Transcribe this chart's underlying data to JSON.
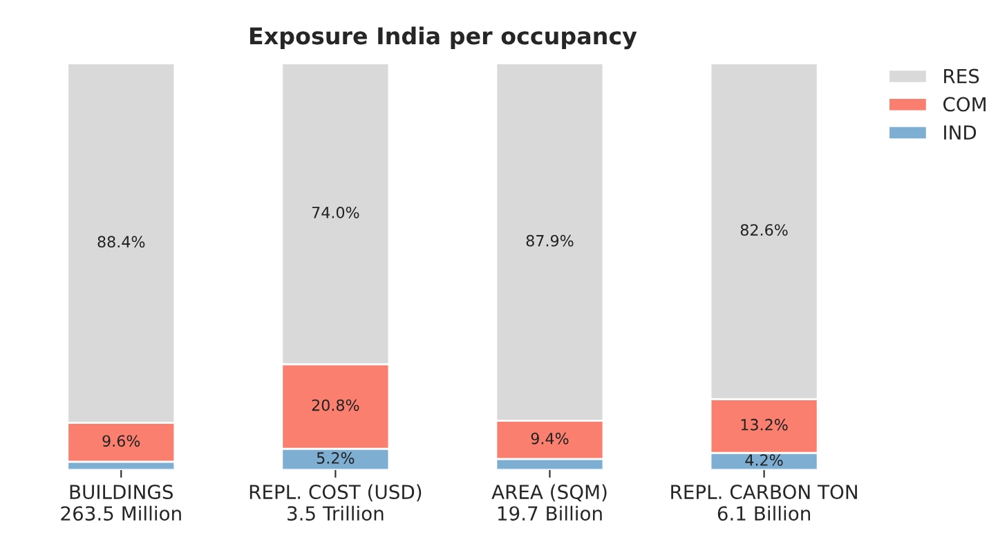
{
  "chart_data": {
    "type": "bar",
    "title": "Exposure India per occupancy",
    "stacked": true,
    "legend": "top right",
    "categories": [
      "BUILDINGS\n263.5 Million",
      "REPL. COST (USD)\n3.5 Trillion",
      "AREA (SQM)\n19.7 Billion",
      "REPL. CARBON TON\n6.1 Billion"
    ],
    "series": [
      {
        "name": "IND",
        "color": "#7eafd3",
        "values": [
          2.0,
          5.2,
          2.7,
          4.2
        ],
        "value_labels": [
          null,
          "5.2%",
          null,
          "4.2%"
        ]
      },
      {
        "name": "COM",
        "color": "#fb7f6f",
        "values": [
          9.6,
          20.8,
          9.4,
          13.2
        ],
        "value_labels": [
          "9.6%",
          "20.8%",
          "9.4%",
          "13.2%"
        ]
      },
      {
        "name": "RES",
        "color": "#d9d9d9",
        "values": [
          88.4,
          74.0,
          87.9,
          82.6
        ],
        "value_labels": [
          "88.4%",
          "74.0%",
          "87.9%",
          "82.6%"
        ]
      }
    ],
    "ylim": [
      0,
      100
    ],
    "tick_labels": "x",
    "grid": false
  }
}
